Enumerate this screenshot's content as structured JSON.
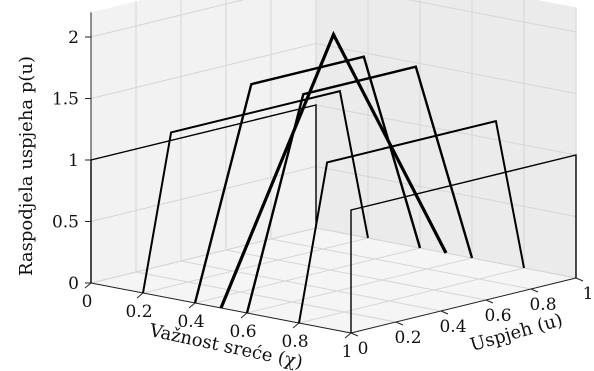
{
  "chart_data": {
    "type": "line",
    "projection": "3d",
    "grid": true,
    "xlabel": "Važnost sreće (χ)",
    "ylabel": "Uspjeh (u)",
    "zlabel": "Raspodjela uspjeha p(u)",
    "xlim": [
      0,
      1
    ],
    "ylim": [
      0,
      1
    ],
    "zlim": [
      0,
      2
    ],
    "x_ticks": [
      "0",
      "0.2",
      "0.4",
      "0.6",
      "0.8",
      "1"
    ],
    "y_ticks": [
      "0",
      "0.2",
      "0.4",
      "0.6",
      "0.8",
      "1"
    ],
    "z_ticks": [
      "0",
      "0.5",
      "1",
      "1.5",
      "2"
    ],
    "series": [
      {
        "chi": 0.0,
        "points": [
          [
            0,
            0
          ],
          [
            0,
            1
          ],
          [
            1,
            1
          ],
          [
            1,
            0
          ]
        ]
      },
      {
        "chi": 0.2,
        "points": [
          [
            0,
            0
          ],
          [
            0.125,
            1.25
          ],
          [
            0.875,
            1.25
          ],
          [
            1,
            0
          ]
        ]
      },
      {
        "chi": 0.4,
        "points": [
          [
            0,
            0
          ],
          [
            0.25,
            1.667
          ],
          [
            0.75,
            1.667
          ],
          [
            1,
            0
          ]
        ]
      },
      {
        "chi": 0.5,
        "points": [
          [
            0,
            0
          ],
          [
            0.5,
            2
          ],
          [
            1,
            0
          ]
        ]
      },
      {
        "chi": 0.6,
        "points": [
          [
            0,
            0
          ],
          [
            0.25,
            1.667
          ],
          [
            0.75,
            1.667
          ],
          [
            1,
            0
          ]
        ]
      },
      {
        "chi": 0.8,
        "points": [
          [
            0,
            0
          ],
          [
            0.125,
            1.25
          ],
          [
            0.875,
            1.25
          ],
          [
            1,
            0
          ]
        ]
      },
      {
        "chi": 1.0,
        "points": [
          [
            0,
            0
          ],
          [
            0,
            1
          ],
          [
            1,
            1
          ],
          [
            1,
            0
          ]
        ]
      }
    ]
  }
}
